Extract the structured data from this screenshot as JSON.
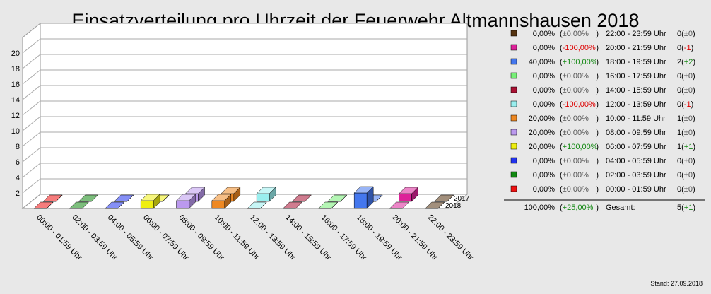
{
  "chart_data": {
    "type": "bar",
    "title": "Einsatzverteilung pro Uhrzeit der Feuerwehr Altmannshausen 2018",
    "categories": [
      "00:00 - 01:59 Uhr",
      "02:00 - 03:59 Uhr",
      "04:00 - 05:59 Uhr",
      "06:00 - 07:59 Uhr",
      "08:00 - 09:59 Uhr",
      "10:00 - 11:59 Uhr",
      "12:00 - 13:59 Uhr",
      "14:00 - 15:59 Uhr",
      "16:00 - 17:59 Uhr",
      "18:00 - 19:59 Uhr",
      "20:00 - 21:59 Uhr",
      "22:00 - 23:59 Uhr"
    ],
    "colors": [
      "#ee1111",
      "#118811",
      "#2233ee",
      "#eeee11",
      "#bb99ee",
      "#ee8822",
      "#99eeee",
      "#aa1133",
      "#77ee77",
      "#4477ee",
      "#dd2299",
      "#553311"
    ],
    "series": [
      {
        "name": "2018",
        "values": [
          0,
          0,
          0,
          1,
          1,
          1,
          0,
          0,
          0,
          2,
          0,
          0
        ]
      },
      {
        "name": "2017",
        "values": [
          0,
          0,
          0,
          0,
          1,
          1,
          1,
          0,
          0,
          0,
          1,
          0
        ]
      }
    ],
    "yticks": [
      "2",
      "4",
      "6",
      "8",
      "10",
      "12",
      "14",
      "16",
      "18",
      "20"
    ],
    "ylim": [
      0,
      22
    ],
    "legend": [
      {
        "pct": "0,00%",
        "change": "±0,00%",
        "change_color": "#555555",
        "range": "22:00 - 23:59 Uhr",
        "count": "0",
        "delta": "±0",
        "delta_color": "#555555",
        "color": "#553311"
      },
      {
        "pct": "0,00%",
        "change": "-100,00%",
        "change_color": "#dd0000",
        "range": "20:00 - 21:59 Uhr",
        "count": "0",
        "delta": "-1",
        "delta_color": "#dd0000",
        "color": "#dd2299"
      },
      {
        "pct": "40,00%",
        "change": "+100,00%",
        "change_color": "#118811",
        "range": "18:00 - 19:59 Uhr",
        "count": "2",
        "delta": "+2",
        "delta_color": "#118811",
        "color": "#4477ee"
      },
      {
        "pct": "0,00%",
        "change": "±0,00%",
        "change_color": "#555555",
        "range": "16:00 - 17:59 Uhr",
        "count": "0",
        "delta": "±0",
        "delta_color": "#555555",
        "color": "#77ee77"
      },
      {
        "pct": "0,00%",
        "change": "±0,00%",
        "change_color": "#555555",
        "range": "14:00 - 15:59 Uhr",
        "count": "0",
        "delta": "±0",
        "delta_color": "#555555",
        "color": "#aa1133"
      },
      {
        "pct": "0,00%",
        "change": "-100,00%",
        "change_color": "#dd0000",
        "range": "12:00 - 13:59 Uhr",
        "count": "0",
        "delta": "-1",
        "delta_color": "#dd0000",
        "color": "#99eeee"
      },
      {
        "pct": "20,00%",
        "change": "±0,00%",
        "change_color": "#555555",
        "range": "10:00 - 11:59 Uhr",
        "count": "1",
        "delta": "±0",
        "delta_color": "#555555",
        "color": "#ee8822"
      },
      {
        "pct": "20,00%",
        "change": "±0,00%",
        "change_color": "#555555",
        "range": "08:00 - 09:59 Uhr",
        "count": "1",
        "delta": "±0",
        "delta_color": "#555555",
        "color": "#bb99ee"
      },
      {
        "pct": "20,00%",
        "change": "+100,00%",
        "change_color": "#118811",
        "range": "06:00 - 07:59 Uhr",
        "count": "1",
        "delta": "+1",
        "delta_color": "#118811",
        "color": "#eeee11"
      },
      {
        "pct": "0,00%",
        "change": "±0,00%",
        "change_color": "#555555",
        "range": "04:00 - 05:59 Uhr",
        "count": "0",
        "delta": "±0",
        "delta_color": "#555555",
        "color": "#2233ee"
      },
      {
        "pct": "0,00%",
        "change": "±0,00%",
        "change_color": "#555555",
        "range": "02:00 - 03:59 Uhr",
        "count": "0",
        "delta": "±0",
        "delta_color": "#555555",
        "color": "#118811"
      },
      {
        "pct": "0,00%",
        "change": "±0,00%",
        "change_color": "#555555",
        "range": "00:00 - 01:59 Uhr",
        "count": "0",
        "delta": "±0",
        "delta_color": "#555555",
        "color": "#ee1111"
      }
    ],
    "total": {
      "pct": "100,00%",
      "change": "+25,00%",
      "change_color": "#118811",
      "label": "Gesamt:",
      "count": "5",
      "delta": "+1",
      "delta_color": "#118811"
    },
    "stand": "Stand: 27.09.2018"
  }
}
